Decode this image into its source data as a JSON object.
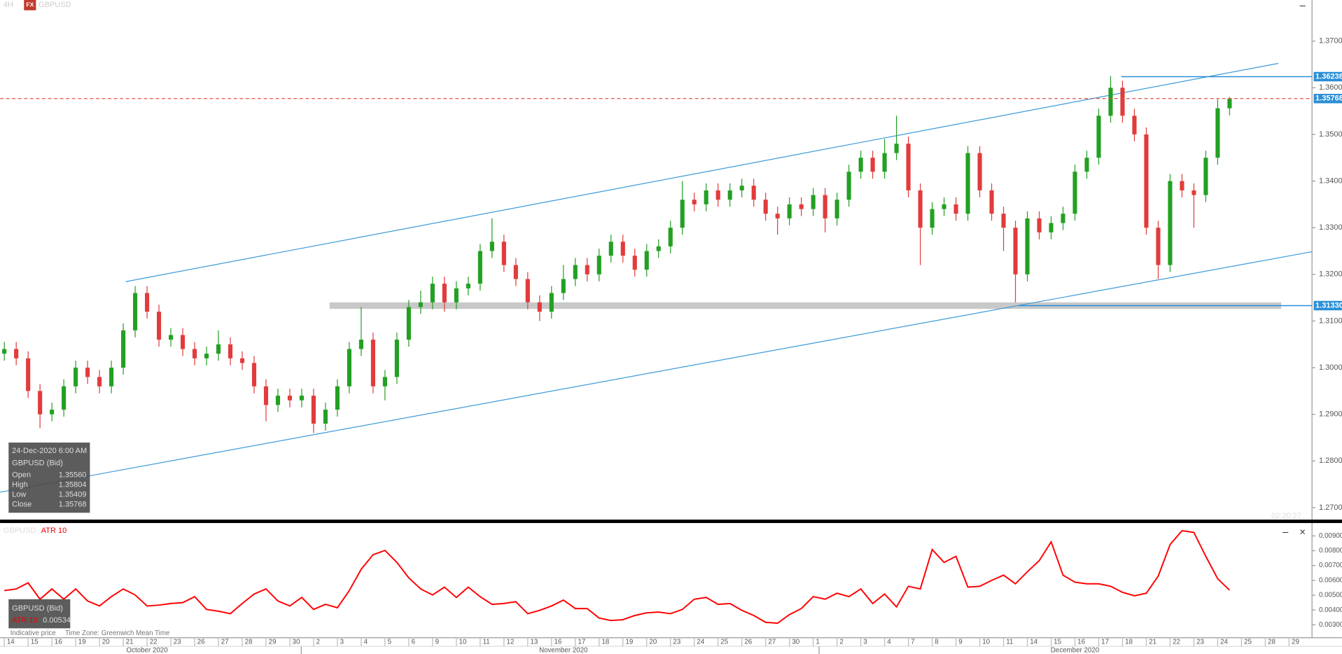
{
  "chart_data": [
    {
      "type": "candlestick",
      "timeframe": "4H",
      "badge": "FX",
      "symbol": "GBPUSD",
      "candles": [
        [
          1.303,
          1.3055,
          1.3015,
          1.304
        ],
        [
          1.304,
          1.3055,
          1.3005,
          1.302
        ],
        [
          1.302,
          1.3035,
          1.2935,
          1.295
        ],
        [
          1.295,
          1.2965,
          1.287,
          1.29
        ],
        [
          1.29,
          1.2925,
          1.2885,
          1.291
        ],
        [
          1.291,
          1.2975,
          1.2895,
          1.296
        ],
        [
          1.296,
          1.3015,
          1.2945,
          1.3
        ],
        [
          1.3,
          1.3015,
          1.2965,
          1.298
        ],
        [
          1.298,
          1.2995,
          1.2945,
          1.296
        ],
        [
          1.296,
          1.3015,
          1.2945,
          1.3
        ],
        [
          1.3,
          1.3095,
          1.2985,
          1.308
        ],
        [
          1.308,
          1.3175,
          1.3065,
          1.316
        ],
        [
          1.316,
          1.3175,
          1.3105,
          1.312
        ],
        [
          1.312,
          1.3135,
          1.3045,
          1.306
        ],
        [
          1.306,
          1.3085,
          1.3045,
          1.307
        ],
        [
          1.307,
          1.3085,
          1.3025,
          1.304
        ],
        [
          1.304,
          1.3055,
          1.3005,
          1.302
        ],
        [
          1.302,
          1.3045,
          1.3005,
          1.303
        ],
        [
          1.303,
          1.308,
          1.3015,
          1.305
        ],
        [
          1.305,
          1.3065,
          1.3005,
          1.302
        ],
        [
          1.302,
          1.3035,
          1.2995,
          1.301
        ],
        [
          1.301,
          1.3025,
          1.2945,
          1.296
        ],
        [
          1.296,
          1.2975,
          1.2885,
          1.292
        ],
        [
          1.292,
          1.2955,
          1.2905,
          1.294
        ],
        [
          1.294,
          1.2955,
          1.2915,
          1.293
        ],
        [
          1.293,
          1.2955,
          1.2915,
          1.294
        ],
        [
          1.294,
          1.2955,
          1.286,
          1.288
        ],
        [
          1.288,
          1.2925,
          1.2865,
          1.291
        ],
        [
          1.291,
          1.2975,
          1.2895,
          1.296
        ],
        [
          1.296,
          1.3055,
          1.2945,
          1.304
        ],
        [
          1.304,
          1.313,
          1.3025,
          1.306
        ],
        [
          1.306,
          1.3075,
          1.2945,
          1.296
        ],
        [
          1.296,
          1.2995,
          1.293,
          1.298
        ],
        [
          1.298,
          1.3075,
          1.2965,
          1.306
        ],
        [
          1.306,
          1.3145,
          1.3045,
          1.313
        ],
        [
          1.313,
          1.3165,
          1.3115,
          1.314
        ],
        [
          1.314,
          1.3195,
          1.3125,
          1.318
        ],
        [
          1.318,
          1.3195,
          1.312,
          1.314
        ],
        [
          1.314,
          1.3185,
          1.3125,
          1.317
        ],
        [
          1.317,
          1.3195,
          1.3155,
          1.318
        ],
        [
          1.318,
          1.3265,
          1.3165,
          1.325
        ],
        [
          1.325,
          1.332,
          1.3235,
          1.327
        ],
        [
          1.327,
          1.3285,
          1.3205,
          1.322
        ],
        [
          1.322,
          1.3235,
          1.3175,
          1.319
        ],
        [
          1.319,
          1.3205,
          1.3125,
          1.314
        ],
        [
          1.314,
          1.3155,
          1.31,
          1.312
        ],
        [
          1.312,
          1.3175,
          1.3105,
          1.316
        ],
        [
          1.316,
          1.322,
          1.3145,
          1.319
        ],
        [
          1.319,
          1.3235,
          1.3175,
          1.322
        ],
        [
          1.322,
          1.3235,
          1.3185,
          1.32
        ],
        [
          1.32,
          1.3255,
          1.3185,
          1.324
        ],
        [
          1.324,
          1.3285,
          1.3225,
          1.327
        ],
        [
          1.327,
          1.3285,
          1.3225,
          1.324
        ],
        [
          1.324,
          1.3255,
          1.3195,
          1.321
        ],
        [
          1.321,
          1.3265,
          1.3195,
          1.325
        ],
        [
          1.325,
          1.3275,
          1.3235,
          1.326
        ],
        [
          1.326,
          1.3315,
          1.3245,
          1.33
        ],
        [
          1.33,
          1.34,
          1.3285,
          1.336
        ],
        [
          1.336,
          1.3375,
          1.3335,
          1.335
        ],
        [
          1.335,
          1.3395,
          1.3335,
          1.338
        ],
        [
          1.338,
          1.3395,
          1.3345,
          1.336
        ],
        [
          1.336,
          1.3395,
          1.3345,
          1.338
        ],
        [
          1.338,
          1.3405,
          1.3365,
          1.339
        ],
        [
          1.339,
          1.3405,
          1.3345,
          1.336
        ],
        [
          1.336,
          1.3375,
          1.3315,
          1.333
        ],
        [
          1.333,
          1.3345,
          1.3285,
          1.332
        ],
        [
          1.332,
          1.3365,
          1.3305,
          1.335
        ],
        [
          1.335,
          1.3365,
          1.3325,
          1.334
        ],
        [
          1.334,
          1.3385,
          1.3325,
          1.337
        ],
        [
          1.337,
          1.3385,
          1.329,
          1.332
        ],
        [
          1.332,
          1.3375,
          1.3305,
          1.336
        ],
        [
          1.336,
          1.3435,
          1.3345,
          1.342
        ],
        [
          1.342,
          1.3465,
          1.3405,
          1.345
        ],
        [
          1.345,
          1.3465,
          1.3405,
          1.342
        ],
        [
          1.342,
          1.349,
          1.3405,
          1.346
        ],
        [
          1.346,
          1.354,
          1.3445,
          1.348
        ],
        [
          1.348,
          1.3495,
          1.3365,
          1.338
        ],
        [
          1.338,
          1.3395,
          1.322,
          1.33
        ],
        [
          1.33,
          1.3355,
          1.3285,
          1.334
        ],
        [
          1.334,
          1.3365,
          1.3325,
          1.335
        ],
        [
          1.335,
          1.3365,
          1.3315,
          1.333
        ],
        [
          1.333,
          1.3475,
          1.3315,
          1.346
        ],
        [
          1.346,
          1.3475,
          1.3365,
          1.338
        ],
        [
          1.338,
          1.3395,
          1.3315,
          1.333
        ],
        [
          1.333,
          1.3345,
          1.325,
          1.33
        ],
        [
          1.33,
          1.3315,
          1.314,
          1.32
        ],
        [
          1.32,
          1.3335,
          1.3185,
          1.332
        ],
        [
          1.332,
          1.3335,
          1.3275,
          1.329
        ],
        [
          1.329,
          1.3325,
          1.3275,
          1.331
        ],
        [
          1.331,
          1.3345,
          1.3295,
          1.333
        ],
        [
          1.333,
          1.3435,
          1.3315,
          1.342
        ],
        [
          1.342,
          1.3465,
          1.3405,
          1.345
        ],
        [
          1.345,
          1.3555,
          1.3435,
          1.354
        ],
        [
          1.354,
          1.3625,
          1.3525,
          1.36
        ],
        [
          1.36,
          1.3615,
          1.3525,
          1.354
        ],
        [
          1.354,
          1.3555,
          1.3485,
          1.35
        ],
        [
          1.35,
          1.3515,
          1.3285,
          1.33
        ],
        [
          1.33,
          1.3315,
          1.319,
          1.322
        ],
        [
          1.322,
          1.3415,
          1.3205,
          1.34
        ],
        [
          1.34,
          1.3415,
          1.3365,
          1.338
        ],
        [
          1.338,
          1.3395,
          1.33,
          1.337
        ],
        [
          1.337,
          1.3465,
          1.3355,
          1.345
        ],
        [
          1.345,
          1.3575,
          1.3435,
          1.3556
        ],
        [
          1.3556,
          1.35804,
          1.35409,
          1.35768
        ]
      ],
      "colors": {
        "up": "#23a023",
        "down": "#e23b3b"
      },
      "xlim": [
        -0.36,
        109.93
      ],
      "ylim": [
        1.26743,
        1.37881
      ],
      "yticks": [
        {
          "value": 1.27,
          "label": "1.27000"
        },
        {
          "value": 1.28,
          "label": "1.28000"
        },
        {
          "value": 1.29,
          "label": "1.29000"
        },
        {
          "value": 1.3,
          "label": "1.30000"
        },
        {
          "value": 1.31,
          "label": "1.31000"
        },
        {
          "value": 1.32,
          "label": "1.32000"
        },
        {
          "value": 1.33,
          "label": "1.33000"
        },
        {
          "value": 1.34,
          "label": "1.34000"
        },
        {
          "value": 1.35,
          "label": "1.35000"
        },
        {
          "value": 1.36,
          "label": "1.36000"
        },
        {
          "value": 1.37,
          "label": "1.37000"
        }
      ],
      "xticks": [
        {
          "value": 0,
          "label": "14"
        },
        {
          "value": 2,
          "label": "15"
        },
        {
          "value": 4,
          "label": "16"
        },
        {
          "value": 6,
          "label": "19"
        },
        {
          "value": 8,
          "label": "20"
        },
        {
          "value": 10,
          "label": "21"
        },
        {
          "value": 12,
          "label": "22"
        },
        {
          "value": 14,
          "label": "23"
        },
        {
          "value": 16,
          "label": "26"
        },
        {
          "value": 18,
          "label": "27"
        },
        {
          "value": 20,
          "label": "28"
        },
        {
          "value": 22,
          "label": "29"
        },
        {
          "value": 24,
          "label": "30"
        },
        {
          "value": 26,
          "label": "2"
        },
        {
          "value": 28,
          "label": "3"
        },
        {
          "value": 30,
          "label": "4"
        },
        {
          "value": 32,
          "label": "5"
        },
        {
          "value": 34,
          "label": "6"
        },
        {
          "value": 36,
          "label": "9"
        },
        {
          "value": 38,
          "label": "10"
        },
        {
          "value": 40,
          "label": "11"
        },
        {
          "value": 42,
          "label": "12"
        },
        {
          "value": 44,
          "label": "13"
        },
        {
          "value": 46,
          "label": "16"
        },
        {
          "value": 48,
          "label": "17"
        },
        {
          "value": 50,
          "label": "18"
        },
        {
          "value": 52,
          "label": "19"
        },
        {
          "value": 54,
          "label": "20"
        },
        {
          "value": 56,
          "label": "23"
        },
        {
          "value": 58,
          "label": "24"
        },
        {
          "value": 60,
          "label": "25"
        },
        {
          "value": 62,
          "label": "26"
        },
        {
          "value": 64,
          "label": "27"
        },
        {
          "value": 66,
          "label": "30"
        },
        {
          "value": 68,
          "label": "1"
        },
        {
          "value": 70,
          "label": "2"
        },
        {
          "value": 72,
          "label": "3"
        },
        {
          "value": 74,
          "label": "4"
        },
        {
          "value": 76,
          "label": "7"
        },
        {
          "value": 78,
          "label": "8"
        },
        {
          "value": 80,
          "label": "9"
        },
        {
          "value": 82,
          "label": "10"
        },
        {
          "value": 84,
          "label": "11"
        },
        {
          "value": 86,
          "label": "14"
        },
        {
          "value": 88,
          "label": "15"
        },
        {
          "value": 90,
          "label": "16"
        },
        {
          "value": 92,
          "label": "17"
        },
        {
          "value": 94,
          "label": "18"
        },
        {
          "value": 96,
          "label": "21"
        },
        {
          "value": 98,
          "label": "22"
        },
        {
          "value": 100,
          "label": "23"
        },
        {
          "value": 102,
          "label": "24"
        },
        {
          "value": 104,
          "label": "25"
        },
        {
          "value": 106,
          "label": "28"
        },
        {
          "value": 108,
          "label": "29"
        }
      ],
      "months": [
        {
          "value": 12,
          "label": "October 2020"
        },
        {
          "value": 47,
          "label": "November 2020"
        },
        {
          "value": 90,
          "label": "December 2020"
        }
      ],
      "price_lines": [
        {
          "value": 1.36238,
          "label": "1.36238",
          "start": 93.9,
          "style": "solid",
          "color": "#2a8fd6"
        },
        {
          "value": 1.35768,
          "label": "1.35768",
          "style": "dashed",
          "color": "#e05050"
        },
        {
          "value": 1.3133,
          "label": "1.31330",
          "start": 85.25,
          "style": "solid",
          "color": "#2a8fd6"
        }
      ],
      "trendlines": [
        {
          "x": [
            10.2,
            107.1
          ],
          "y": [
            1.31844,
            1.36523
          ],
          "color": "#3d9ad8"
        },
        {
          "x": [
            -0.36,
            109.93
          ],
          "y": [
            1.2733,
            1.32486
          ],
          "color": "#3d9ad8"
        }
      ],
      "zone": {
        "x": [
          27.34,
          107.34
        ],
        "y": [
          1.3126,
          1.314
        ],
        "color": "#c8c8c8"
      },
      "clock": "02:20:27",
      "info": {
        "time": "24-Dec-2020 6:00 AM",
        "symbol": "GBPUSD (Bid)",
        "rows": [
          {
            "label": "Open",
            "value": "1.35560"
          },
          {
            "label": "High",
            "value": "1.35804"
          },
          {
            "label": "Low",
            "value": "1.35409"
          },
          {
            "label": "Close",
            "value": "1.35768"
          }
        ]
      }
    },
    {
      "type": "line",
      "symbol": "GBPUSD",
      "series": [
        {
          "name": "ATR 10",
          "color": "#ff0000",
          "values": [
            0.00531,
            0.00542,
            0.00583,
            0.00473,
            0.00542,
            0.00473,
            0.00542,
            0.00461,
            0.00427,
            0.0049,
            0.00542,
            0.00502,
            0.00427,
            0.00433,
            0.00444,
            0.0045,
            0.0049,
            0.00404,
            0.00392,
            0.00375,
            0.00444,
            0.00508,
            0.00542,
            0.00461,
            0.00427,
            0.00485,
            0.00404,
            0.00438,
            0.00415,
            0.00531,
            0.00675,
            0.00773,
            0.00802,
            0.00721,
            0.00617,
            0.00542,
            0.00502,
            0.00554,
            0.00485,
            0.00554,
            0.0049,
            0.00438,
            0.00444,
            0.00456,
            0.00375,
            0.00398,
            0.00427,
            0.00467,
            0.0041,
            0.0041,
            0.00346,
            0.00329,
            0.00335,
            0.00363,
            0.00381,
            0.00386,
            0.00375,
            0.00404,
            0.00473,
            0.00485,
            0.00438,
            0.00444,
            0.00398,
            0.00363,
            0.00317,
            0.00311,
            0.00369,
            0.0041,
            0.0049,
            0.00473,
            0.00513,
            0.0049,
            0.00542,
            0.00444,
            0.00508,
            0.00421,
            0.0056,
            0.00542,
            0.00808,
            0.00721,
            0.00762,
            0.00554,
            0.0056,
            0.006,
            0.00635,
            0.00577,
            0.00658,
            0.00733,
            0.0086,
            0.00635,
            0.00588,
            0.00577,
            0.00577,
            0.0056,
            0.00519,
            0.00496,
            0.00513,
            0.00629,
            0.00842,
            0.00935,
            0.00923,
            0.00762,
            0.00611,
            0.00534
          ]
        }
      ],
      "ylim": [
        0.00213,
        0.00981
      ],
      "yticks": [
        {
          "value": 0.003,
          "label": "0.00300"
        },
        {
          "value": 0.004,
          "label": "0.00400"
        },
        {
          "value": 0.005,
          "label": "0.00500"
        },
        {
          "value": 0.006,
          "label": "0.00600"
        },
        {
          "value": 0.007,
          "label": "0.00700"
        },
        {
          "value": 0.008,
          "label": "0.00800"
        },
        {
          "value": 0.009,
          "label": "0.00900"
        }
      ],
      "info": {
        "symbol": "GBPUSD (Bid)",
        "value": "0.00534"
      }
    }
  ],
  "footer": {
    "price": "Indicative price",
    "timezone": "Time Zone: Greenwich Mean Time"
  }
}
